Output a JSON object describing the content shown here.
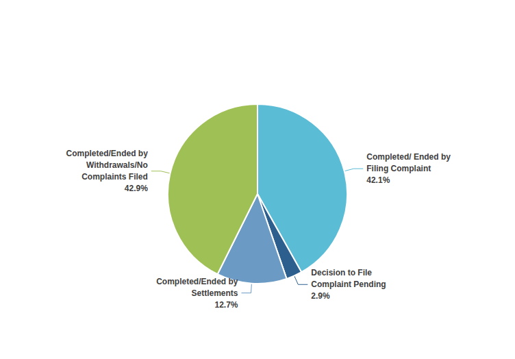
{
  "chart_data": {
    "type": "pie",
    "categories": [
      "Completed/ Ended by\nFiling Complaint",
      "Decision to File\nComplaint Pending",
      "Completed/Ended by\nSettlements",
      "Completed/Ended by\nWithdrawals/No\nComplaints Filed"
    ],
    "values": [
      42.1,
      2.9,
      12.7,
      42.9
    ],
    "value_labels": [
      "42.1%",
      "2.9%",
      "12.7%",
      "42.9%"
    ],
    "colors": [
      "#5bbcd6",
      "#2c5f8e",
      "#6b9ac4",
      "#9fc054"
    ],
    "data_labels": true,
    "legend": false
  }
}
